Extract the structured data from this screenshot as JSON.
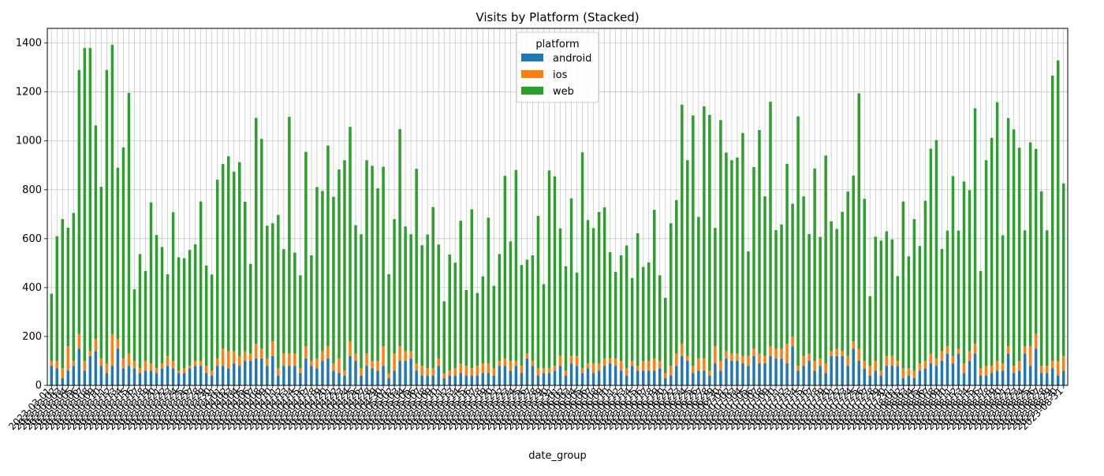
{
  "chart_data": {
    "type": "bar",
    "stacked": true,
    "title": "Visits by Platform (Stacked)",
    "xlabel": "date_group",
    "ylabel": "",
    "ylim": [
      0,
      1460
    ],
    "yticks": [
      0,
      200,
      400,
      600,
      800,
      1000,
      1200,
      1400
    ],
    "grid": true,
    "legend": {
      "title": "platform",
      "position": "top-center"
    },
    "x_range": {
      "start": "2023-03-01",
      "end": "2023-08-31"
    },
    "x_tick_labels": [
      "2023-03-01",
      "2023-03-02",
      "2023-03-03",
      "2023-03-04",
      "2023-03-05",
      "2023-03-06",
      "2023-03-07",
      "2023-03-08",
      "2023-03-09",
      "2023-03-10",
      "2023-03-11",
      "2023-03-12",
      "2023-03-13",
      "2023-03-14",
      "2023-03-15",
      "2023-03-16",
      "2023-03-17",
      "2023-03-18",
      "2023-03-19",
      "2023-03-20",
      "2023-03-21",
      "2023-03-22",
      "2023-03-23",
      "2023-03-24",
      "2023-03-25",
      "2023-03-26",
      "2023-03-27",
      "2023-03-28",
      "2023-03-29",
      "2023-03-30",
      "2023-03-31",
      "2023-04-01",
      "2023-04-02",
      "2023-04-03",
      "2023-04-04",
      "2023-04-05",
      "2023-04-06",
      "2023-04-07",
      "2023-04-08",
      "2023-04-09",
      "2023-04-10",
      "2023-04-11",
      "2023-04-12",
      "2023-04-13",
      "2023-04-14",
      "2023-04-15",
      "2023-04-16",
      "2023-04-17",
      "2023-04-18",
      "2023-04-19",
      "2023-04-20",
      "2023-04-21",
      "2023-04-22",
      "2023-04-23",
      "2023-04-24",
      "2023-04-25",
      "2023-04-26",
      "2023-04-27",
      "2023-04-28",
      "2023-04-29",
      "2023-04-30",
      "2023-05-01",
      "2023-05-02",
      "2023-05-03",
      "2023-05-04",
      "2023-05-05",
      "2023-05-06",
      "2023-05-07",
      "2023-05-08",
      "2023-05-09",
      "2023-05-10",
      "2023-05-11",
      "2023-05-12",
      "2023-05-13",
      "2023-05-14",
      "2023-05-15",
      "2023-05-16",
      "2023-05-17",
      "2023-05-18",
      "2023-05-19",
      "2023-05-20",
      "2023-05-21",
      "2023-05-22",
      "2023-05-23",
      "2023-05-24",
      "2023-05-25",
      "2023-05-26",
      "2023-05-27",
      "2023-05-28",
      "2023-05-29",
      "2023-05-30",
      "2023-05-31",
      "2023-06-01",
      "2023-06-02",
      "2023-06-03",
      "2023-06-04",
      "2023-06-05",
      "2023-06-06",
      "2023-06-07",
      "2023-06-08",
      "2023-06-09",
      "2023-06-10",
      "2023-06-11",
      "2023-06-12",
      "2023-06-13",
      "2023-06-14",
      "2023-06-15",
      "2023-06-16",
      "2023-06-17",
      "2023-06-18",
      "2023-06-19",
      "2023-06-20",
      "2023-06-21",
      "2023-06-22",
      "2023-06-23",
      "2023-06-24",
      "2023-06-25",
      "2023-06-26",
      "2023-06-27",
      "2023-06-28",
      "2023-06-29",
      "2023-06-30",
      "2023-07-01",
      "2023-07-02",
      "2023-07-03",
      "2023-07-04",
      "2023-07-05",
      "2023-07-06",
      "2023-07-07",
      "2023-07-08",
      "2023-07-09",
      "2023-07-10",
      "2023-07-11",
      "2023-07-12",
      "2023-07-13",
      "2023-07-14",
      "2023-07-15",
      "2023-07-16",
      "2023-07-17",
      "2023-07-18",
      "2023-07-19",
      "2023-07-20",
      "2023-07-21",
      "2023-07-22",
      "2023-07-23",
      "2023-07-24",
      "2023-07-25",
      "2023-07-26",
      "2023-07-27",
      "2023-07-28",
      "2023-07-29",
      "2023-07-30",
      "2023-07-31",
      "2023-08-01",
      "2023-08-02",
      "2023-08-03",
      "2023-08-04",
      "2023-08-05",
      "2023-08-06",
      "2023-08-07",
      "2023-08-08",
      "2023-08-09",
      "2023-08-10",
      "2023-08-11",
      "2023-08-12",
      "2023-08-13",
      "2023-08-14",
      "2023-08-15",
      "2023-08-16",
      "2023-08-17",
      "2023-08-18",
      "2023-08-19",
      "2023-08-20",
      "2023-08-21",
      "2023-08-22",
      "2023-08-23",
      "2023-08-24",
      "2023-08-25",
      "2023-08-26",
      "2023-08-27",
      "2023-08-28",
      "2023-08-29",
      "2023-08-30",
      "2023-08-31"
    ],
    "totals": [
      375,
      610,
      680,
      645,
      705,
      1290,
      1380,
      1380,
      1063,
      812,
      1290,
      1393,
      890,
      973,
      1196,
      393,
      537,
      468,
      748,
      615,
      566,
      454,
      708,
      524,
      520,
      554,
      577,
      752,
      490,
      453,
      841,
      905,
      937,
      874,
      913,
      751,
      497,
      1094,
      1008,
      653,
      663,
      697,
      557,
      1098,
      543,
      450,
      955,
      532,
      811,
      795,
      981,
      771,
      883,
      921,
      1057,
      655,
      618,
      921,
      898,
      806,
      894,
      455,
      680,
      1048,
      650,
      618,
      886,
      573,
      617,
      729,
      576,
      344,
      535,
      502,
      673,
      390,
      720,
      378,
      446,
      686,
      407,
      537,
      857,
      589,
      881,
      492,
      514,
      532,
      693,
      414,
      879,
      855,
      642,
      487,
      765,
      461,
      953,
      676,
      643,
      709,
      728,
      545,
      464,
      532,
      572,
      439,
      622,
      484,
      503,
      718,
      450,
      358,
      663,
      758,
      1148,
      921,
      1104,
      689,
      1141,
      1106,
      644,
      1085,
      952,
      921,
      932,
      1032,
      548,
      893,
      1044,
      773,
      1160,
      635,
      658,
      906,
      743,
      1100,
      773,
      619,
      887,
      607,
      940,
      671,
      640,
      710,
      793,
      858,
      1194,
      763,
      365,
      608,
      592,
      630,
      597,
      447,
      752,
      528,
      680,
      570,
      755,
      968,
      1003,
      558,
      633,
      856,
      633,
      834,
      798,
      1133,
      468,
      921,
      1012,
      1158,
      614,
      1093,
      1047,
      972,
      634,
      994,
      967,
      794,
      634,
      1267,
      1329,
      826
    ],
    "series": [
      {
        "name": "android",
        "color": "#1f77b4",
        "values": [
          80,
          70,
          30,
          60,
          80,
          150,
          60,
          120,
          140,
          80,
          50,
          80,
          150,
          70,
          80,
          70,
          50,
          60,
          60,
          50,
          70,
          80,
          70,
          50,
          50,
          70,
          80,
          80,
          50,
          40,
          80,
          80,
          70,
          90,
          80,
          100,
          100,
          110,
          110,
          80,
          120,
          40,
          80,
          80,
          80,
          50,
          110,
          80,
          70,
          100,
          110,
          60,
          50,
          40,
          120,
          100,
          40,
          80,
          70,
          60,
          80,
          30,
          60,
          100,
          100,
          110,
          60,
          40,
          40,
          40,
          80,
          30,
          40,
          40,
          50,
          40,
          40,
          40,
          50,
          50,
          40,
          80,
          80,
          60,
          80,
          50,
          110,
          80,
          40,
          50,
          50,
          60,
          80,
          40,
          90,
          80,
          50,
          70,
          50,
          60,
          80,
          90,
          80,
          60,
          40,
          80,
          60,
          60,
          60,
          60,
          70,
          30,
          40,
          80,
          120,
          100,
          50,
          60,
          60,
          40,
          90,
          60,
          110,
          100,
          100,
          90,
          80,
          120,
          90,
          90,
          120,
          110,
          110,
          90,
          160,
          60,
          80,
          100,
          60,
          80,
          50,
          120,
          120,
          120,
          80,
          150,
          100,
          70,
          40,
          60,
          40,
          80,
          80,
          80,
          30,
          40,
          30,
          60,
          70,
          90,
          80,
          100,
          130,
          90,
          130,
          50,
          100,
          130,
          40,
          40,
          50,
          60,
          60,
          130,
          50,
          60,
          130,
          80,
          150,
          50,
          50,
          70,
          40,
          60
        ]
      },
      {
        "name": "ios",
        "color": "#ff7f0e",
        "values": [
          20,
          30,
          40,
          100,
          20,
          60,
          40,
          20,
          50,
          30,
          40,
          130,
          40,
          40,
          50,
          30,
          20,
          40,
          30,
          20,
          20,
          40,
          30,
          10,
          20,
          10,
          20,
          20,
          30,
          20,
          30,
          70,
          70,
          50,
          40,
          40,
          30,
          60,
          40,
          30,
          60,
          30,
          50,
          50,
          50,
          20,
          50,
          20,
          40,
          40,
          50,
          30,
          60,
          20,
          60,
          30,
          30,
          50,
          30,
          40,
          80,
          20,
          70,
          60,
          40,
          30,
          30,
          40,
          30,
          30,
          30,
          20,
          20,
          30,
          40,
          40,
          30,
          40,
          40,
          40,
          30,
          20,
          30,
          40,
          20,
          30,
          20,
          20,
          30,
          20,
          20,
          20,
          40,
          20,
          30,
          40,
          20,
          20,
          40,
          30,
          30,
          20,
          30,
          40,
          30,
          20,
          20,
          40,
          40,
          50,
          30,
          20,
          40,
          50,
          50,
          20,
          30,
          50,
          50,
          20,
          70,
          40,
          30,
          30,
          30,
          30,
          40,
          30,
          40,
          30,
          40,
          40,
          40,
          80,
          40,
          20,
          40,
          30,
          40,
          30,
          40,
          20,
          30,
          20,
          40,
          30,
          50,
          30,
          40,
          40,
          20,
          40,
          40,
          20,
          40,
          30,
          30,
          30,
          30,
          40,
          30,
          40,
          30,
          30,
          20,
          40,
          40,
          40,
          30,
          40,
          30,
          40,
          30,
          30,
          30,
          40,
          30,
          80,
          60,
          30,
          30,
          30,
          60,
          60
        ]
      },
      {
        "name": "web",
        "color": "#2ca02c",
        "values": [
          275,
          510,
          610,
          485,
          605,
          1080,
          1280,
          1240,
          873,
          702,
          1200,
          1183,
          700,
          863,
          1066,
          293,
          467,
          368,
          658,
          545,
          476,
          334,
          608,
          464,
          450,
          474,
          477,
          652,
          410,
          393,
          731,
          755,
          797,
          734,
          793,
          611,
          367,
          924,
          858,
          543,
          483,
          627,
          427,
          968,
          413,
          380,
          795,
          432,
          701,
          655,
          821,
          681,
          773,
          861,
          877,
          525,
          548,
          791,
          798,
          706,
          734,
          405,
          550,
          888,
          510,
          478,
          796,
          493,
          547,
          659,
          466,
          294,
          475,
          432,
          583,
          310,
          650,
          298,
          356,
          596,
          337,
          437,
          747,
          489,
          781,
          412,
          384,
          432,
          623,
          344,
          809,
          775,
          522,
          427,
          645,
          341,
          883,
          586,
          553,
          619,
          618,
          435,
          354,
          432,
          502,
          339,
          542,
          384,
          403,
          608,
          350,
          308,
          583,
          628,
          978,
          801,
          1024,
          579,
          1031,
          1046,
          484,
          985,
          812,
          791,
          802,
          912,
          428,
          743,
          914,
          653,
          1000,
          485,
          508,
          736,
          543,
          1020,
          653,
          489,
          787,
          497,
          850,
          531,
          490,
          570,
          673,
          678,
          1044,
          663,
          285,
          508,
          532,
          510,
          477,
          347,
          682,
          458,
          620,
          480,
          655,
          838,
          893,
          418,
          473,
          736,
          483,
          744,
          658,
          963,
          398,
          841,
          932,
          1058,
          524,
          933,
          967,
          872,
          474,
          834,
          757,
          714,
          554,
          1167,
          1229,
          706
        ]
      }
    ]
  }
}
